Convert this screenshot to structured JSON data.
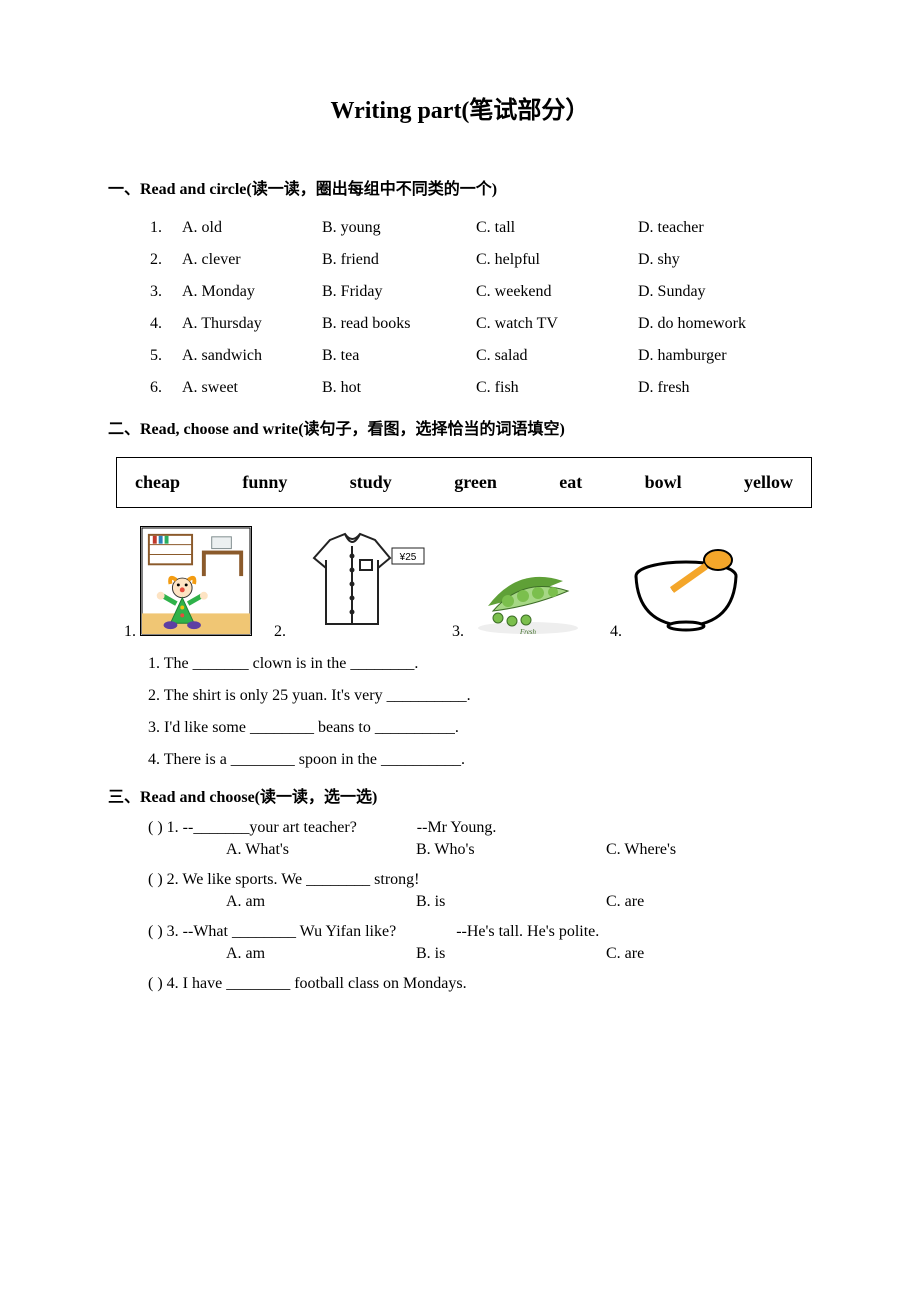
{
  "title": "Writing part(笔试部分）",
  "section1": {
    "heading": "一、Read and circle(读一读，圈出每组中不同类的一个)",
    "rows": [
      {
        "n": "1.",
        "a": "A. old",
        "b": "B. young",
        "c": "C. tall",
        "d": "D. teacher"
      },
      {
        "n": "2.",
        "a": "A. clever",
        "b": "B. friend",
        "c": "C. helpful",
        "d": "D. shy"
      },
      {
        "n": "3.",
        "a": "A. Monday",
        "b": "B. Friday",
        "c": "C. weekend",
        "d": "D. Sunday"
      },
      {
        "n": "4.",
        "a": "A. Thursday",
        "b": "B. read books",
        "c": "C. watch TV",
        "d": "D. do homework"
      },
      {
        "n": "5.",
        "a": "A. sandwich",
        "b": "B. tea",
        "c": "C. salad",
        "d": "D. hamburger"
      },
      {
        "n": "6.",
        "a": "A. sweet",
        "b": "B. hot",
        "c": "C. fish",
        "d": "D. fresh"
      }
    ]
  },
  "section2": {
    "heading": "二、Read, choose and write(读句子，看图，选择恰当的词语填空)",
    "words": [
      "cheap",
      "funny",
      "study",
      "green",
      "eat",
      "bowl",
      "yellow"
    ],
    "image_labels": {
      "i1": "1.",
      "i2": "2.",
      "i3": "3.",
      "i4": "4."
    },
    "price_tag": "¥25",
    "peas_label": "Fresh",
    "sentences": {
      "s1": "1. The _______ clown is in the ________.",
      "s2": "2. The shirt is only 25 yuan. It's very __________.",
      "s3": "3. I'd like some ________ beans to __________.",
      "s4": "4. There is a ________ spoon in the __________."
    },
    "colors": {
      "clown_body": "#2fb24a",
      "clown_hair": "#f39c12",
      "clown_nose": "#e74c3c",
      "shelf": "#8b5a2b",
      "floor": "#f0c674",
      "shirt_fill": "#ffffff",
      "shirt_stroke": "#222222",
      "peas_green": "#5fa037",
      "peas_light": "#a6d785",
      "peas_dark": "#3e6e28",
      "bowl_stroke": "#000000",
      "spoon_fill": "#f4a62a"
    }
  },
  "section3": {
    "heading": "三、Read and choose(读一读，选一选)",
    "items": [
      {
        "line": "(     ) 1. --_______your art teacher?",
        "answer": "--Mr Young.",
        "a": "A. What's",
        "b": "B. Who's",
        "c": "C. Where's",
        "answer_indent": true
      },
      {
        "line": "(     ) 2. We like sports. We ________ strong!",
        "answer": "",
        "a": "A. am",
        "b": "B. is",
        "c": "C. are"
      },
      {
        "line": "(     ) 3. --What ________ Wu Yifan like?",
        "answer": "--He's tall. He's polite.",
        "a": "A. am",
        "b": "B. is",
        "c": "C. are",
        "answer_indent": true
      },
      {
        "line": "(     ) 4. I have ________ football class on Mondays.",
        "answer": "",
        "a": "",
        "b": "",
        "c": ""
      }
    ]
  }
}
